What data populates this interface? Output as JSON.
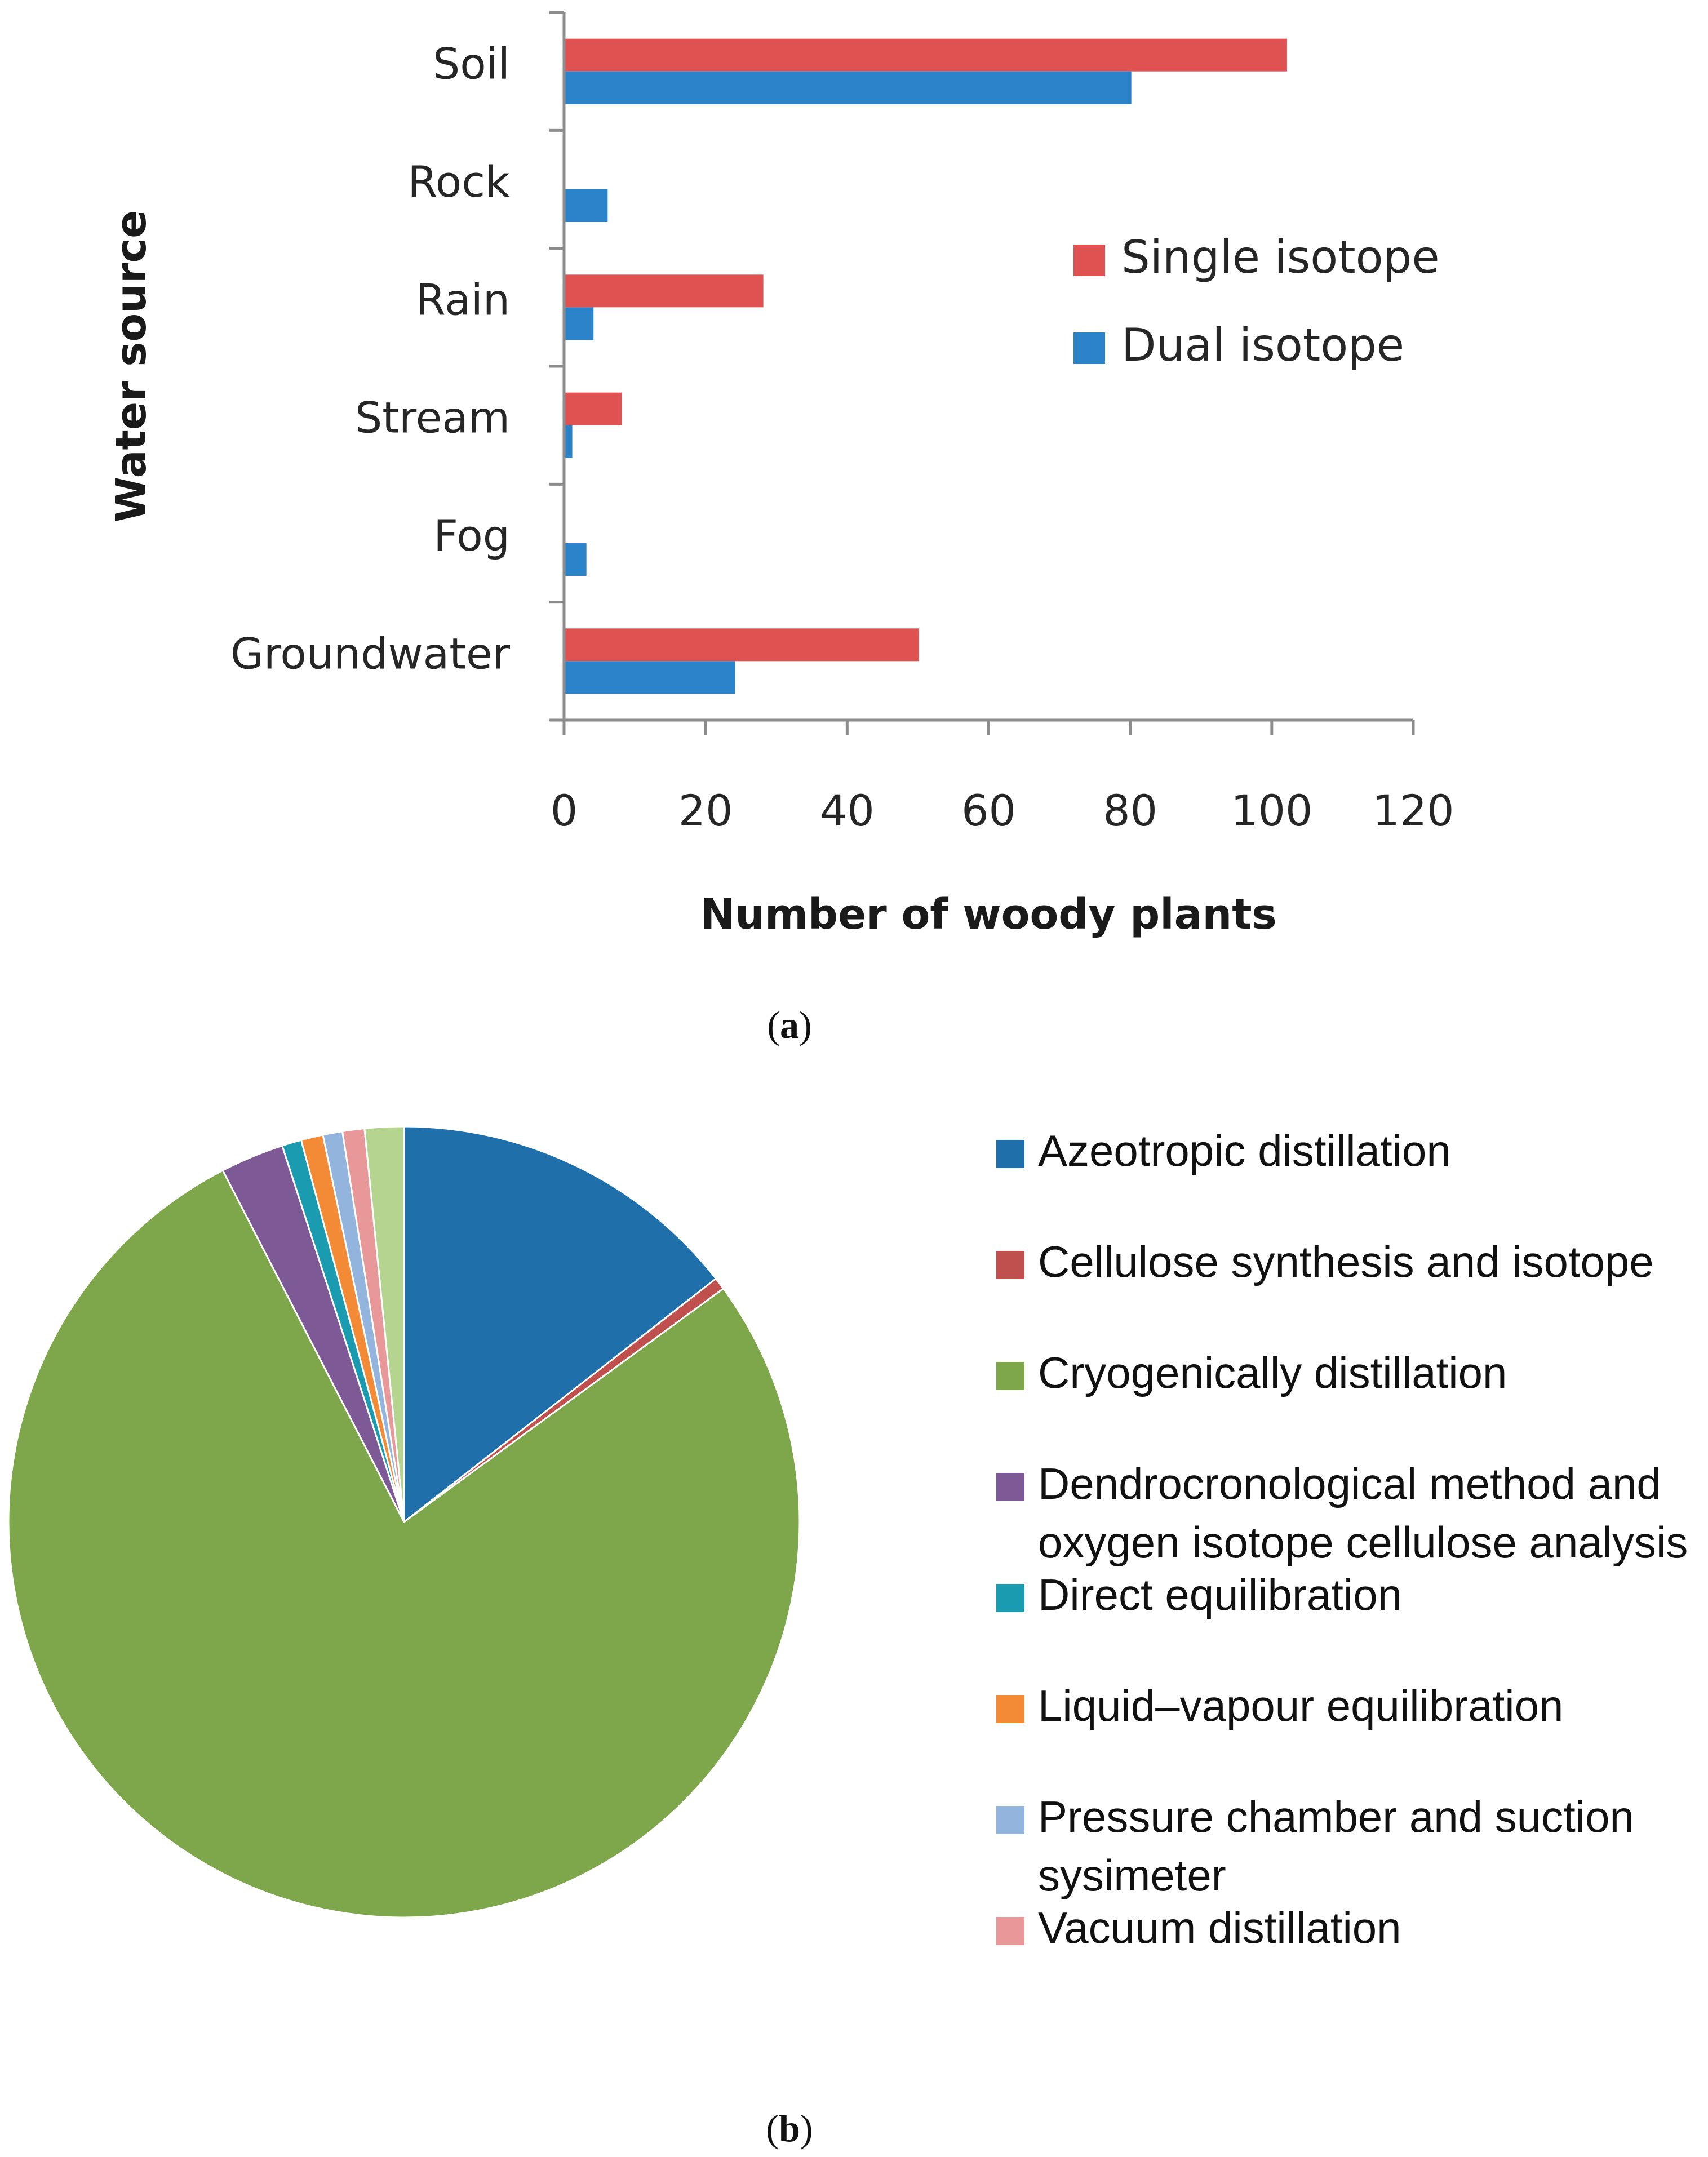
{
  "chart_data": [
    {
      "type": "bar",
      "orientation": "horizontal",
      "panel_label": "a",
      "categories": [
        "Soil",
        "Rock",
        "Rain",
        "Stream",
        "Fog",
        "Groundwater"
      ],
      "series": [
        {
          "name": "Single isotope",
          "color": "#e05252",
          "values": [
            102,
            0,
            28,
            8,
            0,
            50
          ]
        },
        {
          "name": "Dual isotope",
          "color": "#2b83c9",
          "values": [
            80,
            6,
            4,
            1,
            3,
            24
          ]
        }
      ],
      "title": "",
      "xlabel": "Number of woody plants",
      "ylabel": "Water source",
      "xlim": [
        0,
        120
      ],
      "xticks": [
        "0",
        "20",
        "40",
        "60",
        "80",
        "100",
        "120"
      ],
      "grid": false,
      "legend": "right"
    },
    {
      "type": "pie",
      "panel_label": "b",
      "labels": [
        "Azeotropic distillation",
        "Cellulose synthesis and isotope",
        "Cryogenically distillation",
        "Dendrocronological method and oxygen isotope cellulose analysis",
        "Direct equilibration",
        "Liquid–vapour equilibration",
        "Pressure chamber and suction sysimeter",
        "Vacuum distillation",
        ""
      ],
      "legend_lines": [
        [
          "Azeotropic distillation"
        ],
        [
          "Cellulose synthesis and isotope"
        ],
        [
          "Cryogenically distillation"
        ],
        [
          "Dendrocronological method and",
          "oxygen isotope cellulose analysis"
        ],
        [
          "Direct equilibration"
        ],
        [
          "Liquid–vapour equilibration"
        ],
        [
          "Pressure chamber and suction",
          "sysimeter"
        ],
        [
          "Vacuum distillation"
        ]
      ],
      "values": [
        14.5,
        0.5,
        77.7,
        2.6,
        0.8,
        0.9,
        0.8,
        0.9,
        1.6
      ],
      "colors": [
        "#1f70aa",
        "#c0504d",
        "#7ea64a",
        "#7d5a96",
        "#1b9bb0",
        "#f28a36",
        "#93b4dc",
        "#e89898",
        "#b5d48f"
      ],
      "title": "",
      "legend": "right"
    }
  ]
}
